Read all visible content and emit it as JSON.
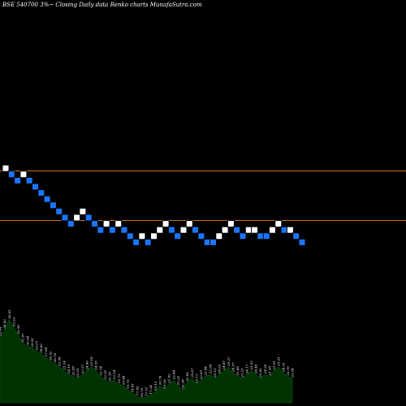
{
  "title": "BSE 540700  3%~  Closing Daily data  Renko  charts MunafaSutra.com",
  "colors": {
    "background": "#000000",
    "up_brick": "#ffffff",
    "down_brick": "#1a75ff",
    "brick_border": "#000000",
    "level_line": "#c8751a",
    "volume_fill": "#003300",
    "volume_line": "#005a1a",
    "text": "#ffffff"
  },
  "chart_data": {
    "type": "renko",
    "bricks": [
      {
        "d": "up",
        "v": 13
      },
      {
        "d": "down",
        "v": 12
      },
      {
        "d": "down",
        "v": 11
      },
      {
        "d": "up",
        "v": 12
      },
      {
        "d": "down",
        "v": 11
      },
      {
        "d": "down",
        "v": 10
      },
      {
        "d": "down",
        "v": 9
      },
      {
        "d": "down",
        "v": 8
      },
      {
        "d": "down",
        "v": 7
      },
      {
        "d": "down",
        "v": 6
      },
      {
        "d": "down",
        "v": 5
      },
      {
        "d": "down",
        "v": 4
      },
      {
        "d": "up",
        "v": 5
      },
      {
        "d": "up",
        "v": 6
      },
      {
        "d": "down",
        "v": 5
      },
      {
        "d": "down",
        "v": 4
      },
      {
        "d": "down",
        "v": 3
      },
      {
        "d": "up",
        "v": 4
      },
      {
        "d": "down",
        "v": 3
      },
      {
        "d": "up",
        "v": 4
      },
      {
        "d": "down",
        "v": 3
      },
      {
        "d": "down",
        "v": 2
      },
      {
        "d": "down",
        "v": 1
      },
      {
        "d": "up",
        "v": 2
      },
      {
        "d": "down",
        "v": 1
      },
      {
        "d": "up",
        "v": 2
      },
      {
        "d": "up",
        "v": 3
      },
      {
        "d": "up",
        "v": 4
      },
      {
        "d": "down",
        "v": 3
      },
      {
        "d": "down",
        "v": 2
      },
      {
        "d": "up",
        "v": 3
      },
      {
        "d": "up",
        "v": 4
      },
      {
        "d": "down",
        "v": 3
      },
      {
        "d": "down",
        "v": 2
      },
      {
        "d": "down",
        "v": 1
      },
      {
        "d": "down",
        "v": 1
      },
      {
        "d": "up",
        "v": 2
      },
      {
        "d": "up",
        "v": 3
      },
      {
        "d": "up",
        "v": 4
      },
      {
        "d": "down",
        "v": 3
      },
      {
        "d": "down",
        "v": 2
      },
      {
        "d": "up",
        "v": 3
      },
      {
        "d": "up",
        "v": 3
      },
      {
        "d": "down",
        "v": 2
      },
      {
        "d": "down",
        "v": 2
      },
      {
        "d": "up",
        "v": 3
      },
      {
        "d": "up",
        "v": 4
      },
      {
        "d": "down",
        "v": 3
      },
      {
        "d": "up",
        "v": 3
      },
      {
        "d": "down",
        "v": 2
      },
      {
        "d": "down",
        "v": 1
      }
    ],
    "levels": [
      13,
      5
    ],
    "volume": [
      {
        "v": 0.7,
        "label": "29.44"
      },
      {
        "v": 0.78,
        "label": "36.42"
      },
      {
        "v": 0.88,
        "label": "36.65"
      },
      {
        "v": 0.8,
        "label": "35.33"
      },
      {
        "v": 0.72,
        "label": "32.96"
      },
      {
        "v": 0.63,
        "label": "31.87"
      },
      {
        "v": 0.6,
        "label": "30.54"
      },
      {
        "v": 0.58,
        "label": "29.92"
      },
      {
        "v": 0.55,
        "label": "29.07"
      },
      {
        "v": 0.52,
        "label": "28.82"
      },
      {
        "v": 0.48,
        "label": "27.94"
      },
      {
        "v": 0.44,
        "label": "26.52"
      },
      {
        "v": 0.42,
        "label": "26.76"
      },
      {
        "v": 0.38,
        "label": "25.58"
      },
      {
        "v": 0.34,
        "label": "25.14"
      },
      {
        "v": 0.3,
        "label": "24.15"
      },
      {
        "v": 0.28,
        "label": "22.69"
      },
      {
        "v": 0.26,
        "label": "22.03"
      },
      {
        "v": 0.3,
        "label": "23.27"
      },
      {
        "v": 0.34,
        "label": "24.66"
      },
      {
        "v": 0.38,
        "label": "25.18"
      },
      {
        "v": 0.34,
        "label": "24.55"
      },
      {
        "v": 0.28,
        "label": "23.74"
      },
      {
        "v": 0.24,
        "label": "22.91"
      },
      {
        "v": 0.22,
        "label": "22.18"
      },
      {
        "v": 0.24,
        "label": "23.34"
      },
      {
        "v": 0.2,
        "label": "21.75"
      },
      {
        "v": 0.18,
        "label": "20.88"
      },
      {
        "v": 0.14,
        "label": "19.75"
      },
      {
        "v": 0.1,
        "label": "18.41"
      },
      {
        "v": 0.07,
        "label": "17.42"
      },
      {
        "v": 0.05,
        "label": "16.73"
      },
      {
        "v": 0.06,
        "label": "17.51"
      },
      {
        "v": 0.08,
        "label": "17.34"
      },
      {
        "v": 0.12,
        "label": "19.13"
      },
      {
        "v": 0.18,
        "label": "20.76"
      },
      {
        "v": 0.14,
        "label": "19.28"
      },
      {
        "v": 0.2,
        "label": "21.92"
      },
      {
        "v": 0.24,
        "label": "22.48"
      },
      {
        "v": 0.18,
        "label": "21.01"
      },
      {
        "v": 0.14,
        "label": "20.38"
      },
      {
        "v": 0.22,
        "label": "22.83"
      },
      {
        "v": 0.26,
        "label": "23.67"
      },
      {
        "v": 0.2,
        "label": "22.13"
      },
      {
        "v": 0.24,
        "label": "22.81"
      },
      {
        "v": 0.28,
        "label": "23.44"
      },
      {
        "v": 0.3,
        "label": "23.98"
      },
      {
        "v": 0.26,
        "label": "23.12"
      },
      {
        "v": 0.3,
        "label": "24.03"
      },
      {
        "v": 0.34,
        "label": "24.87"
      },
      {
        "v": 0.38,
        "label": "25.27"
      },
      {
        "v": 0.32,
        "label": "24.57"
      },
      {
        "v": 0.28,
        "label": "23.89"
      },
      {
        "v": 0.26,
        "label": "23.25"
      },
      {
        "v": 0.3,
        "label": "24.17"
      },
      {
        "v": 0.34,
        "label": "25.03"
      },
      {
        "v": 0.3,
        "label": "24.46"
      },
      {
        "v": 0.26,
        "label": "23.62"
      },
      {
        "v": 0.3,
        "label": "24.26"
      },
      {
        "v": 0.28,
        "label": "23.58"
      },
      {
        "v": 0.34,
        "label": "25.01"
      },
      {
        "v": 0.38,
        "label": "25.91"
      },
      {
        "v": 0.32,
        "label": "24.53"
      },
      {
        "v": 0.28,
        "label": "23.76"
      },
      {
        "v": 0.26,
        "label": "23.54"
      }
    ]
  }
}
